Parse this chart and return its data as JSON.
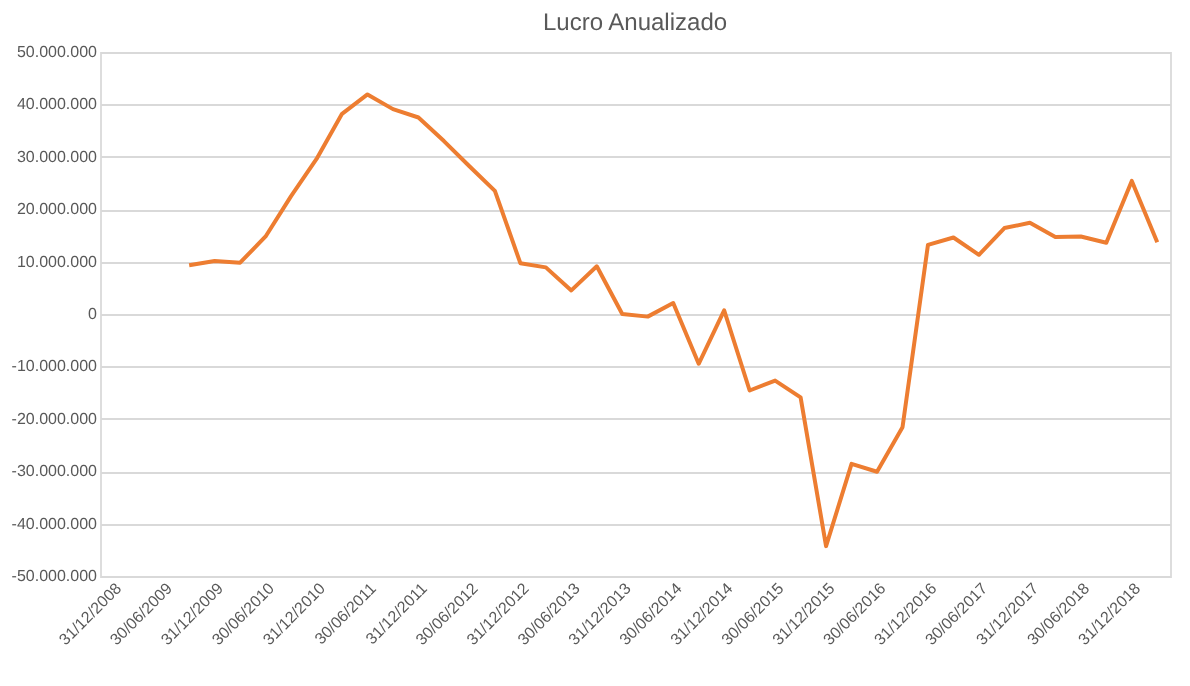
{
  "chart_data": {
    "type": "line",
    "title": "Lucro Anualizado",
    "categories": [
      "31/12/2008",
      null,
      "30/06/2009",
      null,
      "31/12/2009",
      null,
      "30/06/2010",
      null,
      "31/12/2010",
      null,
      "30/06/2011",
      null,
      "31/12/2011",
      null,
      "30/06/2012",
      null,
      "31/12/2012",
      null,
      "30/06/2013",
      null,
      "31/12/2013",
      null,
      "30/06/2014",
      null,
      "31/12/2014",
      null,
      "30/06/2015",
      null,
      "31/12/2015",
      null,
      "30/06/2016",
      null,
      "31/12/2016",
      null,
      "30/06/2017",
      null,
      "31/12/2017",
      null,
      "30/06/2018",
      null,
      "31/12/2018",
      null
    ],
    "series": [
      {
        "color": "#ed7d31",
        "values": [
          null,
          null,
          null,
          9300000,
          10100000,
          9800000,
          14800000,
          22500000,
          29600000,
          38200000,
          41900000,
          39100000,
          37500000,
          33000000,
          28200000,
          23500000,
          9700000,
          8900000,
          4500000,
          9100000,
          0,
          -500000,
          2100000,
          -9500000,
          700000,
          -14600000,
          -12700000,
          -15900000,
          -44300000,
          -28600000,
          -30100000,
          -21600000,
          13200000,
          14600000,
          11300000,
          16400000,
          17400000,
          14700000,
          14800000,
          13600000,
          25400000,
          13700000
        ]
      }
    ],
    "ylim": [
      -50000000,
      50000000
    ],
    "yticks": [
      {
        "value": -50000000,
        "label": "-50.000.000"
      },
      {
        "value": -40000000,
        "label": "-40.000.000"
      },
      {
        "value": -30000000,
        "label": "-30.000.000"
      },
      {
        "value": -20000000,
        "label": "-20.000.000"
      },
      {
        "value": -10000000,
        "label": "-10.000.000"
      },
      {
        "value": 0,
        "label": "0"
      },
      {
        "value": 10000000,
        "label": "10.000.000"
      },
      {
        "value": 20000000,
        "label": "20.000.000"
      },
      {
        "value": 30000000,
        "label": "30.000.000"
      },
      {
        "value": 40000000,
        "label": "40.000.000"
      },
      {
        "value": 50000000,
        "label": "50.000.000"
      }
    ],
    "grid": "y",
    "marker": "none",
    "line_style": "solid"
  }
}
